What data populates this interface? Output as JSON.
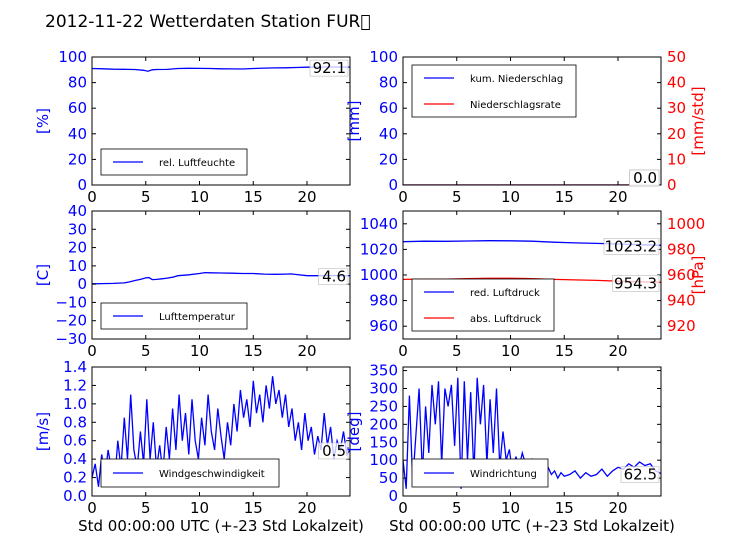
{
  "title": "2012-11-22 Wetterdaten Station FUR\u0000",
  "colors": {
    "blue": "#0000ff",
    "red": "#ff0000",
    "black": "#000000"
  },
  "chart_data": [
    {
      "type": "line",
      "id": "humidity",
      "xlim": [
        0,
        24
      ],
      "ylim": [
        0,
        100
      ],
      "xticks": [
        "0",
        "5",
        "10",
        "15",
        "20"
      ],
      "yticks": [
        "0",
        "20",
        "40",
        "60",
        "80",
        "100"
      ],
      "ylabel": "[%]",
      "xlabel": "",
      "legend": "lower-left",
      "last_value_label": "92.1",
      "series": [
        {
          "name": "rel. Luftfeuchte",
          "color": "#0000ff",
          "x": [
            0,
            1,
            2,
            3,
            4,
            4.8,
            5.2,
            5.6,
            6,
            7,
            8,
            9,
            10,
            11,
            12,
            13,
            14,
            15,
            16,
            17,
            18,
            19,
            20,
            21,
            22,
            23,
            24
          ],
          "y": [
            91,
            90.8,
            90.5,
            90.4,
            90.2,
            89.6,
            88.9,
            90,
            90.2,
            90.3,
            91,
            91.2,
            91.1,
            91,
            90.8,
            90.7,
            90.6,
            91,
            91.3,
            91.5,
            91.6,
            91.8,
            92,
            92.1,
            92.2,
            92.2,
            92.1
          ]
        }
      ]
    },
    {
      "type": "line",
      "id": "precipitation",
      "xlim": [
        0,
        24
      ],
      "ylim": [
        0,
        100
      ],
      "y2lim": [
        0,
        50
      ],
      "xticks": [
        "0",
        "5",
        "10",
        "15",
        "20"
      ],
      "yticks": [
        "0",
        "20",
        "40",
        "60",
        "80",
        "100"
      ],
      "y2ticks": [
        "0",
        "10",
        "20",
        "30",
        "40",
        "50"
      ],
      "ylabel": "[mm]",
      "y2label": "[mm/std]",
      "xlabel": "",
      "legend": "upper-left",
      "last_value_labels": [
        "0.0",
        "0.0"
      ],
      "series": [
        {
          "name": "kum. Niederschlag",
          "color": "#0000ff",
          "axis": "left",
          "x": [
            0,
            24
          ],
          "y": [
            0,
            0
          ]
        },
        {
          "name": "Niederschlagsrate",
          "color": "#ff0000",
          "axis": "right",
          "x": [
            0,
            24
          ],
          "y": [
            0,
            0
          ]
        }
      ]
    },
    {
      "type": "line",
      "id": "temperature",
      "xlim": [
        0,
        24
      ],
      "ylim": [
        -30,
        40
      ],
      "xticks": [
        "0",
        "5",
        "10",
        "15",
        "20"
      ],
      "yticks": [
        "−30",
        "−20",
        "−10",
        "0",
        "10",
        "20",
        "30",
        "40"
      ],
      "ylabel": "[C]",
      "xlabel": "",
      "legend": "lower-left",
      "last_value_label": "4.6",
      "series": [
        {
          "name": "Lufttemperatur",
          "color": "#0000ff",
          "x": [
            0,
            1,
            2,
            3,
            3.5,
            4,
            4.5,
            5,
            5.3,
            5.6,
            6,
            6.5,
            7,
            7.5,
            8,
            9,
            10,
            10.5,
            11,
            12,
            13,
            14,
            15,
            16,
            17,
            18,
            18.5,
            19,
            20,
            21,
            22,
            23,
            24
          ],
          "y": [
            0.2,
            0.3,
            0.4,
            0.7,
            1.2,
            2,
            2.6,
            3.4,
            3.6,
            2.5,
            2.6,
            2.9,
            3.3,
            3.8,
            4.6,
            5.1,
            5.8,
            6.3,
            6.2,
            6.1,
            6,
            5.8,
            5.8,
            5.5,
            5.4,
            5.5,
            5.6,
            5.3,
            4.6,
            4.6,
            4.7,
            4.6,
            4.6
          ]
        }
      ]
    },
    {
      "type": "line",
      "id": "pressure",
      "xlim": [
        0,
        24
      ],
      "ylim": [
        950,
        1050
      ],
      "y2lim": [
        910,
        1010
      ],
      "xticks": [
        "0",
        "5",
        "10",
        "15",
        "20"
      ],
      "yticks": [
        "960",
        "980",
        "1000",
        "1020",
        "1040"
      ],
      "y2ticks": [
        "920",
        "940",
        "960",
        "980",
        "1000"
      ],
      "ylabel": "",
      "y2label": "[hPa]",
      "xlabel": "",
      "legend": "lower-left",
      "last_value_labels": [
        "1023.2",
        "954.3"
      ],
      "series": [
        {
          "name": "red. Luftdruck",
          "color": "#0000ff",
          "axis": "left",
          "x": [
            0,
            2,
            4,
            6,
            8,
            10,
            12,
            14,
            16,
            18,
            20,
            22,
            24
          ],
          "y": [
            1026,
            1026.4,
            1026.3,
            1026.6,
            1026.8,
            1026.7,
            1026.4,
            1025.6,
            1025.1,
            1024.7,
            1024.2,
            1023.7,
            1023.2
          ]
        },
        {
          "name": "abs. Luftdruck",
          "color": "#ff0000",
          "axis": "right",
          "x": [
            0,
            2,
            4,
            6,
            8,
            10,
            12,
            14,
            16,
            18,
            20,
            22,
            24
          ],
          "y": [
            956.6,
            956.8,
            956.8,
            957.1,
            957.4,
            957.4,
            957.1,
            956.6,
            956.2,
            955.8,
            955.2,
            954.7,
            954.3
          ]
        }
      ]
    },
    {
      "type": "line",
      "id": "windspeed",
      "xlim": [
        0,
        24
      ],
      "ylim": [
        0,
        1.4
      ],
      "xticks": [
        "0",
        "5",
        "10",
        "15",
        "20"
      ],
      "yticks": [
        "0.0",
        "0.2",
        "0.4",
        "0.6",
        "0.8",
        "1.0",
        "1.2",
        "1.4"
      ],
      "ylabel": "[m/s]",
      "xlabel": "Std 00:00:00 UTC (+-23 Std Lokalzeit)",
      "legend": "lower-left",
      "last_value_label": "0.5",
      "series": [
        {
          "name": "Windgeschwindigkeit",
          "color": "#0000ff",
          "x": [
            0,
            0.3,
            0.6,
            0.9,
            1.2,
            1.5,
            1.8,
            2.1,
            2.4,
            2.7,
            3,
            3.3,
            3.6,
            3.9,
            4.2,
            4.5,
            4.8,
            5.1,
            5.4,
            5.7,
            6,
            6.3,
            6.6,
            6.9,
            7.2,
            7.5,
            7.8,
            8.1,
            8.4,
            8.7,
            9,
            9.3,
            9.6,
            9.9,
            10.2,
            10.5,
            10.8,
            11.1,
            11.4,
            11.7,
            12,
            12.3,
            12.6,
            12.9,
            13.2,
            13.5,
            13.8,
            14.1,
            14.4,
            14.7,
            15,
            15.3,
            15.6,
            15.9,
            16.2,
            16.5,
            16.8,
            17.1,
            17.4,
            17.7,
            18,
            18.3,
            18.6,
            18.9,
            19.2,
            19.5,
            19.8,
            20.1,
            20.4,
            20.7,
            21,
            21.3,
            21.6,
            21.9,
            22.2,
            22.5,
            22.8,
            23.1,
            23.4,
            23.7,
            24
          ],
          "y": [
            0.2,
            0.35,
            0.1,
            0.45,
            0.2,
            0.5,
            0.3,
            0.15,
            0.6,
            0.3,
            0.85,
            0.4,
            1.1,
            0.5,
            0.3,
            0.7,
            0.35,
            1.05,
            0.4,
            0.8,
            0.3,
            0.55,
            0.25,
            0.75,
            0.4,
            0.95,
            0.5,
            1.1,
            0.6,
            0.9,
            0.45,
            1.05,
            0.6,
            0.4,
            0.85,
            0.55,
            1.1,
            0.7,
            0.5,
            0.95,
            0.65,
            0.4,
            0.8,
            0.55,
            1.0,
            0.7,
            1.15,
            0.85,
            1.05,
            0.75,
            1.25,
            0.9,
            1.1,
            0.8,
            1.2,
            0.95,
            1.3,
            1.0,
            1.15,
            0.85,
            1.1,
            0.75,
            0.95,
            0.6,
            0.8,
            0.5,
            0.9,
            0.6,
            0.75,
            0.45,
            0.65,
            0.5,
            0.9,
            0.55,
            0.75,
            0.4,
            0.6,
            0.5,
            0.7,
            0.45,
            0.5
          ]
        }
      ]
    },
    {
      "type": "line",
      "id": "winddirection",
      "xlim": [
        0,
        24
      ],
      "ylim": [
        0,
        360
      ],
      "xticks": [
        "0",
        "5",
        "10",
        "15",
        "20"
      ],
      "yticks": [
        "0",
        "50",
        "100",
        "150",
        "200",
        "250",
        "300",
        "350"
      ],
      "ylabel": "[deg]",
      "xlabel": "Std 00:00:00 UTC (+-23 Std Lokalzeit)",
      "legend": "lower-left",
      "last_value_label": "62.5",
      "series": [
        {
          "name": "Windrichtung",
          "color": "#0000ff",
          "x": [
            0,
            0.3,
            0.6,
            0.9,
            1.2,
            1.5,
            1.8,
            2.1,
            2.4,
            2.7,
            3,
            3.3,
            3.6,
            3.9,
            4.2,
            4.5,
            4.8,
            5.1,
            5.4,
            5.7,
            6,
            6.3,
            6.6,
            6.9,
            7.2,
            7.5,
            7.8,
            8.1,
            8.4,
            8.7,
            9,
            9.3,
            9.6,
            9.9,
            10.2,
            10.5,
            10.8,
            11.1,
            11.4,
            11.7,
            12,
            12.3,
            12.6,
            12.9,
            13.2,
            13.5,
            13.8,
            14.1,
            14.4,
            14.7,
            15,
            15.5,
            16,
            16.5,
            17,
            17.5,
            18,
            18.5,
            19,
            19.5,
            20,
            20.5,
            21,
            21.5,
            22,
            22.5,
            23,
            23.5,
            24
          ],
          "y": [
            100,
            20,
            280,
            40,
            170,
            300,
            60,
            250,
            120,
            310,
            200,
            320,
            90,
            300,
            250,
            310,
            140,
            330,
            20,
            320,
            100,
            290,
            60,
            330,
            200,
            310,
            90,
            270,
            120,
            300,
            80,
            180,
            100,
            130,
            60,
            110,
            80,
            120,
            90,
            60,
            100,
            70,
            55,
            90,
            60,
            80,
            60,
            70,
            50,
            65,
            55,
            60,
            70,
            50,
            65,
            55,
            60,
            75,
            55,
            70,
            80,
            75,
            90,
            80,
            95,
            85,
            90,
            70,
            62.5
          ]
        }
      ]
    }
  ]
}
